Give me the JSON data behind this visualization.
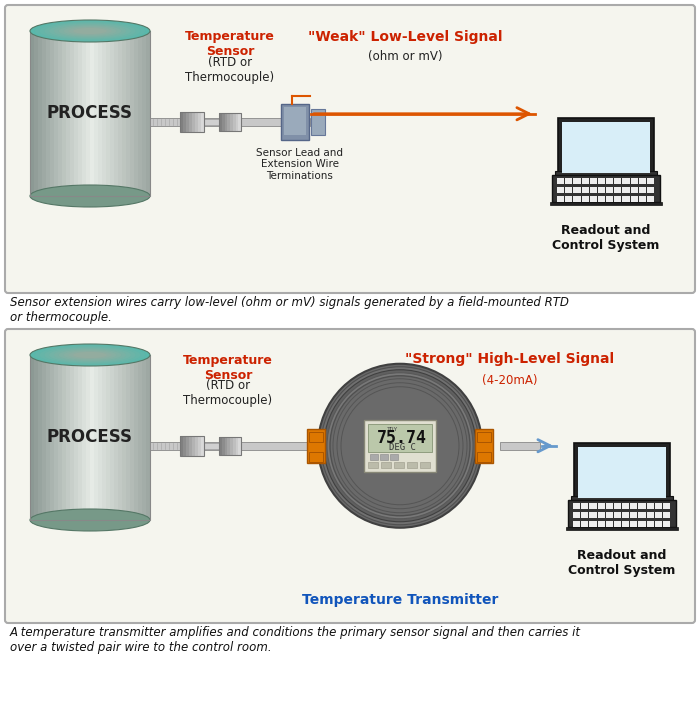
{
  "bg_color": "#ffffff",
  "panel_bg": "#f5f5ee",
  "caption1": "Sensor extension wires carry low-level (ohm or mV) signals generated by a field-mounted RTD\nor thermocouple.",
  "caption2": "A temperature transmitter amplifies and conditions the primary sensor signal and then carries it\nover a twisted pair wire to the control room.",
  "top_panel": {
    "process_label": "PROCESS",
    "sensor_label_red": "Temperature\nSensor",
    "sensor_label_black": "(RTD or\nThermocouple)",
    "signal_label_red": "\"Weak\" Low-Level Signal",
    "signal_label_black": "(ohm or mV)",
    "junction_label": "Sensor Lead and\nExtension Wire\nTerminations",
    "readout_label": "Readout and\nControl System"
  },
  "bottom_panel": {
    "process_label": "PROCESS",
    "sensor_label_red": "Temperature\nSensor",
    "sensor_label_black": "(RTD or\nThermocouple)",
    "signal_label_red": "\"Strong\" High-Level Signal",
    "signal_label_black": "(4-20mA)",
    "transmitter_label": "Temperature Transmitter",
    "readout_label": "Readout and\nControl System"
  },
  "red_color": "#cc2200",
  "blue_color": "#1155bb",
  "orange_color": "#dd7700",
  "arrow_red": "#dd5500",
  "arrow_blue": "#6699cc"
}
